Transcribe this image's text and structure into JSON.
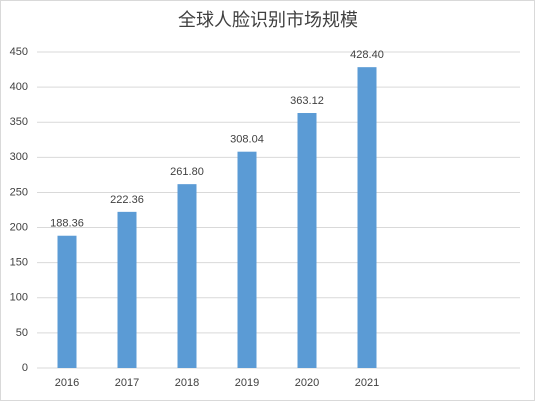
{
  "chart_data": {
    "type": "bar",
    "title": "全球人脸识别市场规模",
    "categories": [
      "2016",
      "2017",
      "2018",
      "2019",
      "2020",
      "2021"
    ],
    "values": [
      188.36,
      222.36,
      261.8,
      308.04,
      363.12,
      428.4
    ],
    "value_labels": [
      "188.36",
      "222.36",
      "261.80",
      "308.04",
      "363.12",
      "428.40"
    ],
    "color": "#5b9bd5",
    "ylim": [
      0,
      450
    ],
    "yticks": [
      0,
      50,
      100,
      150,
      200,
      250,
      300,
      350,
      400,
      450
    ],
    "grid": true
  }
}
